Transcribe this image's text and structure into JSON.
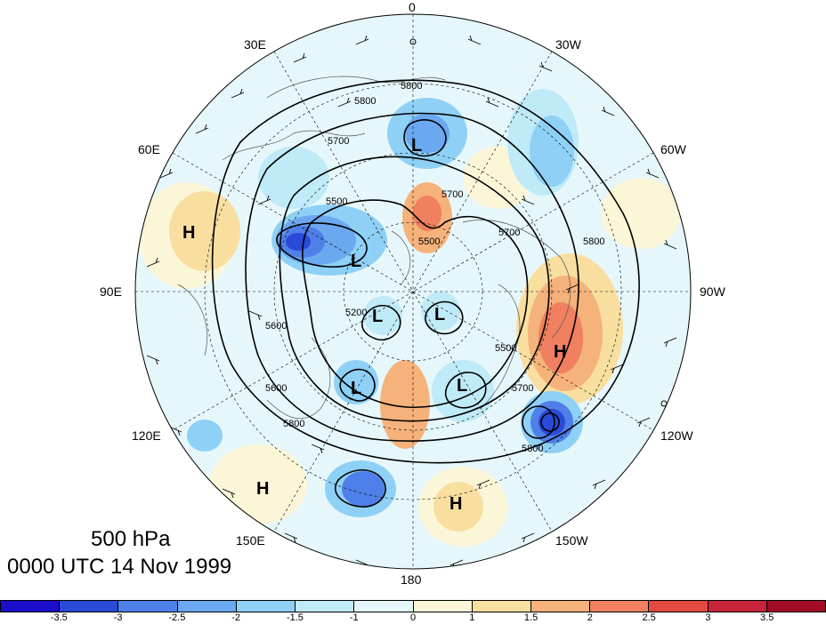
{
  "caption": {
    "level": "500 hPa",
    "time": "0000 UTC 14 Nov 1999"
  },
  "longitude_labels": [
    "0",
    "30W",
    "60W",
    "90W",
    "120W",
    "150W",
    "180",
    "150E",
    "120E",
    "90E",
    "60E",
    "30E"
  ],
  "contour_labels": [
    "5800",
    "5800",
    "5700",
    "5700",
    "5500",
    "5500",
    "5200",
    "5600",
    "5700",
    "5800",
    "5600",
    "5500",
    "5700",
    "5800",
    "5800"
  ],
  "centers": [
    {
      "label": "L",
      "color": "#000000"
    },
    {
      "label": "L",
      "color": "#000000"
    },
    {
      "label": "L",
      "color": "#000000"
    },
    {
      "label": "L",
      "color": "#000000"
    },
    {
      "label": "L",
      "color": "#000000"
    },
    {
      "label": "L",
      "color": "#000000"
    },
    {
      "label": "H",
      "color": "#000000"
    },
    {
      "label": "H",
      "color": "#000000"
    },
    {
      "label": "H",
      "color": "#000000"
    },
    {
      "label": "H",
      "color": "#000000"
    }
  ],
  "colorbar": {
    "colors": [
      "#1a0dcc",
      "#2a4ad8",
      "#4f7fe8",
      "#6aa8f0",
      "#8fd0f6",
      "#bfeaf8",
      "#e6f7fb",
      "#fbf6d8",
      "#f8dfa0",
      "#f5b27a",
      "#f0805f",
      "#e24a40",
      "#c8253a",
      "#a00d25"
    ],
    "tick_labels": [
      "-3.5",
      "-3",
      "-2.5",
      "-2",
      "-1.5",
      "-1",
      "0",
      "1",
      "1.5",
      "2",
      "2.5",
      "3",
      "3.5"
    ]
  }
}
